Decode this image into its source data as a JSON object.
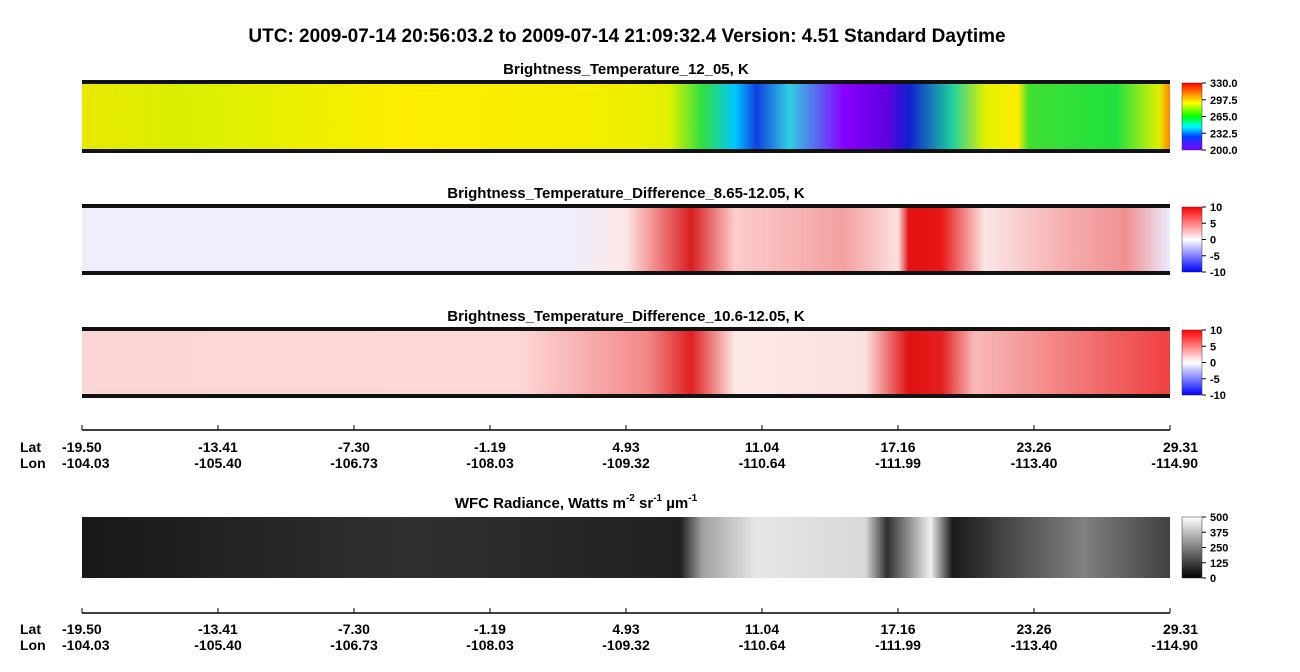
{
  "header": {
    "title": "UTC:  2009-07-14   20:56:03.2  to  2009-07-14   21:09:32.4    Version: 4.51  Standard Daytime"
  },
  "panels": [
    {
      "title": "Brightness_Temperature_12_05, K",
      "colorbar_ticks": [
        {
          "value": 330,
          "label": "330.0"
        },
        {
          "value": 297.5,
          "label": "297.5"
        },
        {
          "value": 265,
          "label": "265.0"
        },
        {
          "value": 232.5,
          "label": "232.5"
        },
        {
          "value": 200,
          "label": "200.0"
        }
      ]
    },
    {
      "title": "Brightness_Temperature_Difference_8.65-12.05, K",
      "colorbar_ticks": [
        10,
        5,
        0,
        -5,
        -10
      ]
    },
    {
      "title": "Brightness_Temperature_Difference_10.6-12.05, K",
      "colorbar_ticks": [
        10,
        5,
        0,
        -5,
        -10
      ]
    },
    {
      "title_parts": [
        "WFC Radiance, Watts m",
        "-2",
        " sr",
        "-1",
        " µm",
        "-1"
      ],
      "colorbar_ticks": [
        500,
        375,
        250,
        125,
        0
      ]
    }
  ],
  "axis": {
    "lat_label": "Lat",
    "lon_label": "Lon",
    "lat": [
      "-19.50",
      "-13.41",
      "-7.30",
      "-1.19",
      "4.93",
      "11.04",
      "17.16",
      "23.26",
      "29.31"
    ],
    "lon": [
      "-104.03",
      "-105.40",
      "-106.73",
      "-108.03",
      "-109.32",
      "-110.64",
      "-111.99",
      "-113.40",
      "-114.90"
    ]
  }
}
